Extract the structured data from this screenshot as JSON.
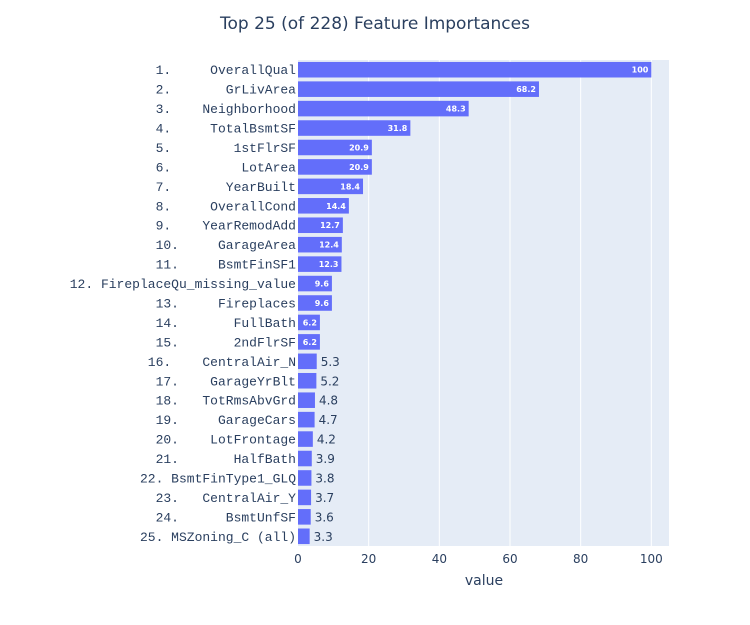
{
  "chart_data": {
    "type": "bar",
    "orientation": "horizontal",
    "title": "Top 25 (of 228) Feature Importances",
    "xlabel": "value",
    "ylabel": "",
    "xlim": [
      0,
      105
    ],
    "xticks": [
      0,
      20,
      40,
      60,
      80,
      100
    ],
    "grid": true,
    "colors": {
      "bar": "#636efa",
      "plot_bg": "#e5ecf6",
      "text": "#2a3f5f",
      "grid": "#ffffff"
    },
    "categories": [
      "1.     OverallQual",
      "2.       GrLivArea",
      "3.    Neighborhood",
      "4.     TotalBsmtSF",
      "5.        1stFlrSF",
      "6.         LotArea",
      "7.       YearBuilt",
      "8.     OverallCond",
      "9.    YearRemodAdd",
      "10.     GarageArea",
      "11.     BsmtFinSF1",
      "12. FireplaceQu_missing_value",
      "13.     Fireplaces",
      "14.       FullBath",
      "15.       2ndFlrSF",
      "16.    CentralAir_N",
      "17.    GarageYrBlt",
      "18.   TotRmsAbvGrd",
      "19.     GarageCars",
      "20.    LotFrontage",
      "21.       HalfBath",
      "22. BsmtFinType1_GLQ",
      "23.   CentralAir_Y",
      "24.      BsmtUnfSF",
      "25. MSZoning_C (all)"
    ],
    "values": [
      100,
      68.2,
      48.3,
      31.8,
      20.9,
      20.9,
      18.4,
      14.4,
      12.7,
      12.4,
      12.3,
      9.6,
      9.6,
      6.2,
      6.2,
      5.3,
      5.2,
      4.8,
      4.7,
      4.2,
      3.9,
      3.8,
      3.7,
      3.6,
      3.3
    ],
    "value_labels": [
      "100",
      "68.2",
      "48.3",
      "31.8",
      "20.9",
      "20.9",
      "18.4",
      "14.4",
      "12.7",
      "12.4",
      "12.3",
      "9.6",
      "9.6",
      "6.2",
      "6.2",
      "5.3",
      "5.2",
      "4.8",
      "4.7",
      "4.2",
      "3.9",
      "3.8",
      "3.7",
      "3.6",
      "3.3"
    ]
  }
}
